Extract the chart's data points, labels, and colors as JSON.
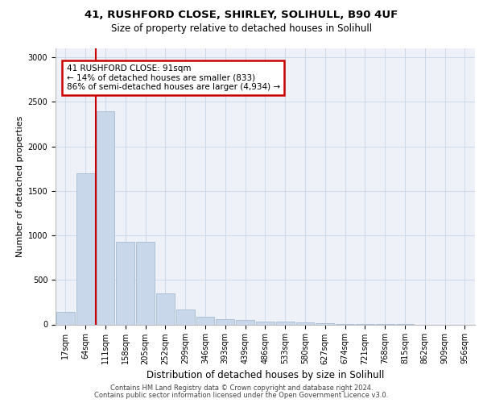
{
  "title_line1": "41, RUSHFORD CLOSE, SHIRLEY, SOLIHULL, B90 4UF",
  "title_line2": "Size of property relative to detached houses in Solihull",
  "xlabel": "Distribution of detached houses by size in Solihull",
  "ylabel": "Number of detached properties",
  "footer_line1": "Contains HM Land Registry data © Crown copyright and database right 2024.",
  "footer_line2": "Contains public sector information licensed under the Open Government Licence v3.0.",
  "annotation_line1": "41 RUSHFORD CLOSE: 91sqm",
  "annotation_line2": "← 14% of detached houses are smaller (833)",
  "annotation_line3": "86% of semi-detached houses are larger (4,934) →",
  "bar_color": "#c8d8ea",
  "bar_edge_color": "#9ab4cc",
  "grid_color": "#ccd8e8",
  "background_color": "#eef2f8",
  "annotation_box_color": "#ffffff",
  "annotation_border_color": "#cc0000",
  "vline_color": "#cc0000",
  "categories": [
    "17sqm",
    "64sqm",
    "111sqm",
    "158sqm",
    "205sqm",
    "252sqm",
    "299sqm",
    "346sqm",
    "393sqm",
    "439sqm",
    "486sqm",
    "533sqm",
    "580sqm",
    "627sqm",
    "674sqm",
    "721sqm",
    "768sqm",
    "815sqm",
    "862sqm",
    "909sqm",
    "956sqm"
  ],
  "values": [
    140,
    1700,
    2390,
    930,
    930,
    350,
    165,
    90,
    60,
    50,
    35,
    30,
    20,
    15,
    5,
    3,
    2,
    1,
    0,
    0,
    0
  ],
  "ylim": [
    0,
    3100
  ],
  "yticks": [
    0,
    500,
    1000,
    1500,
    2000,
    2500,
    3000
  ],
  "vline_x": 1.5,
  "title1_fontsize": 9.5,
  "title2_fontsize": 8.5,
  "ylabel_fontsize": 8,
  "xlabel_fontsize": 8.5,
  "tick_fontsize": 7,
  "footer_fontsize": 6,
  "annot_fontsize": 7.5
}
